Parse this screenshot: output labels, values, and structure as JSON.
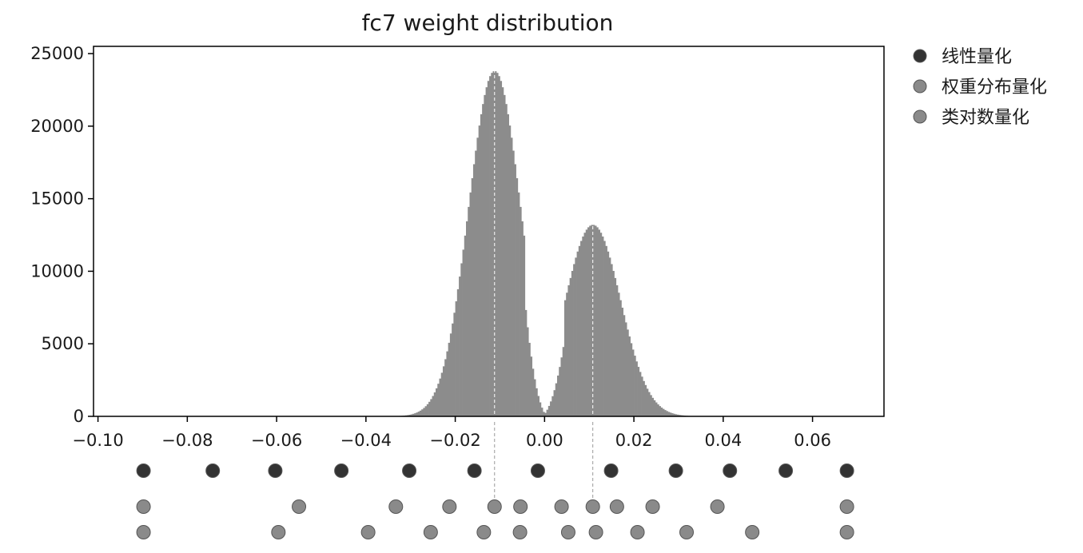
{
  "chart_data": {
    "type": "bar",
    "title": "fc7 weight distribution",
    "xlabel": "",
    "ylabel": "",
    "xlim": [
      -0.101,
      0.076
    ],
    "ylim": [
      0,
      25500
    ],
    "x_ticks": [
      -0.1,
      -0.08,
      -0.06,
      -0.04,
      -0.02,
      0.0,
      0.02,
      0.04,
      0.06
    ],
    "x_tick_labels": [
      "−0.10",
      "−0.08",
      "−0.06",
      "−0.04",
      "−0.02",
      "0.00",
      "0.02",
      "0.04",
      "0.06"
    ],
    "y_ticks": [
      0,
      5000,
      10000,
      15000,
      20000,
      25000
    ],
    "y_tick_labels": [
      "0",
      "5000",
      "10000",
      "15000",
      "20000",
      "25000"
    ],
    "grid": false,
    "legend_position": "outside-right",
    "histogram": {
      "color": "#8c8c8c",
      "bin_width": 0.0004,
      "bin_start": -0.04,
      "bin_end": 0.036,
      "peaks": [
        {
          "center": -0.0112,
          "height": 23800,
          "sigma": 0.0058
        },
        {
          "center": 0.0108,
          "height": 13200,
          "sigma": 0.0062
        }
      ],
      "dip_at": 0.0,
      "reference_lines_x": [
        -0.0112,
        0.0108
      ]
    },
    "series": [
      {
        "name": "线性量化",
        "color": "#333333",
        "x": [
          -0.0898,
          -0.0743,
          -0.0603,
          -0.0455,
          -0.0303,
          -0.0157,
          -0.0015,
          0.0149,
          0.0294,
          0.0415,
          0.054,
          0.0677
        ]
      },
      {
        "name": "权重分布量化",
        "color": "#8a8a8a",
        "x": [
          -0.0898,
          -0.055,
          -0.0333,
          -0.0213,
          -0.0112,
          -0.0054,
          0.0038,
          0.0108,
          0.0162,
          0.0242,
          0.0387,
          0.0677
        ]
      },
      {
        "name": "类对数量化",
        "color": "#8a8a8a",
        "x": [
          -0.0898,
          -0.0596,
          -0.0395,
          -0.0255,
          -0.0136,
          -0.0055,
          0.0053,
          0.0115,
          0.0208,
          0.0318,
          0.0465,
          0.0677
        ]
      }
    ]
  }
}
